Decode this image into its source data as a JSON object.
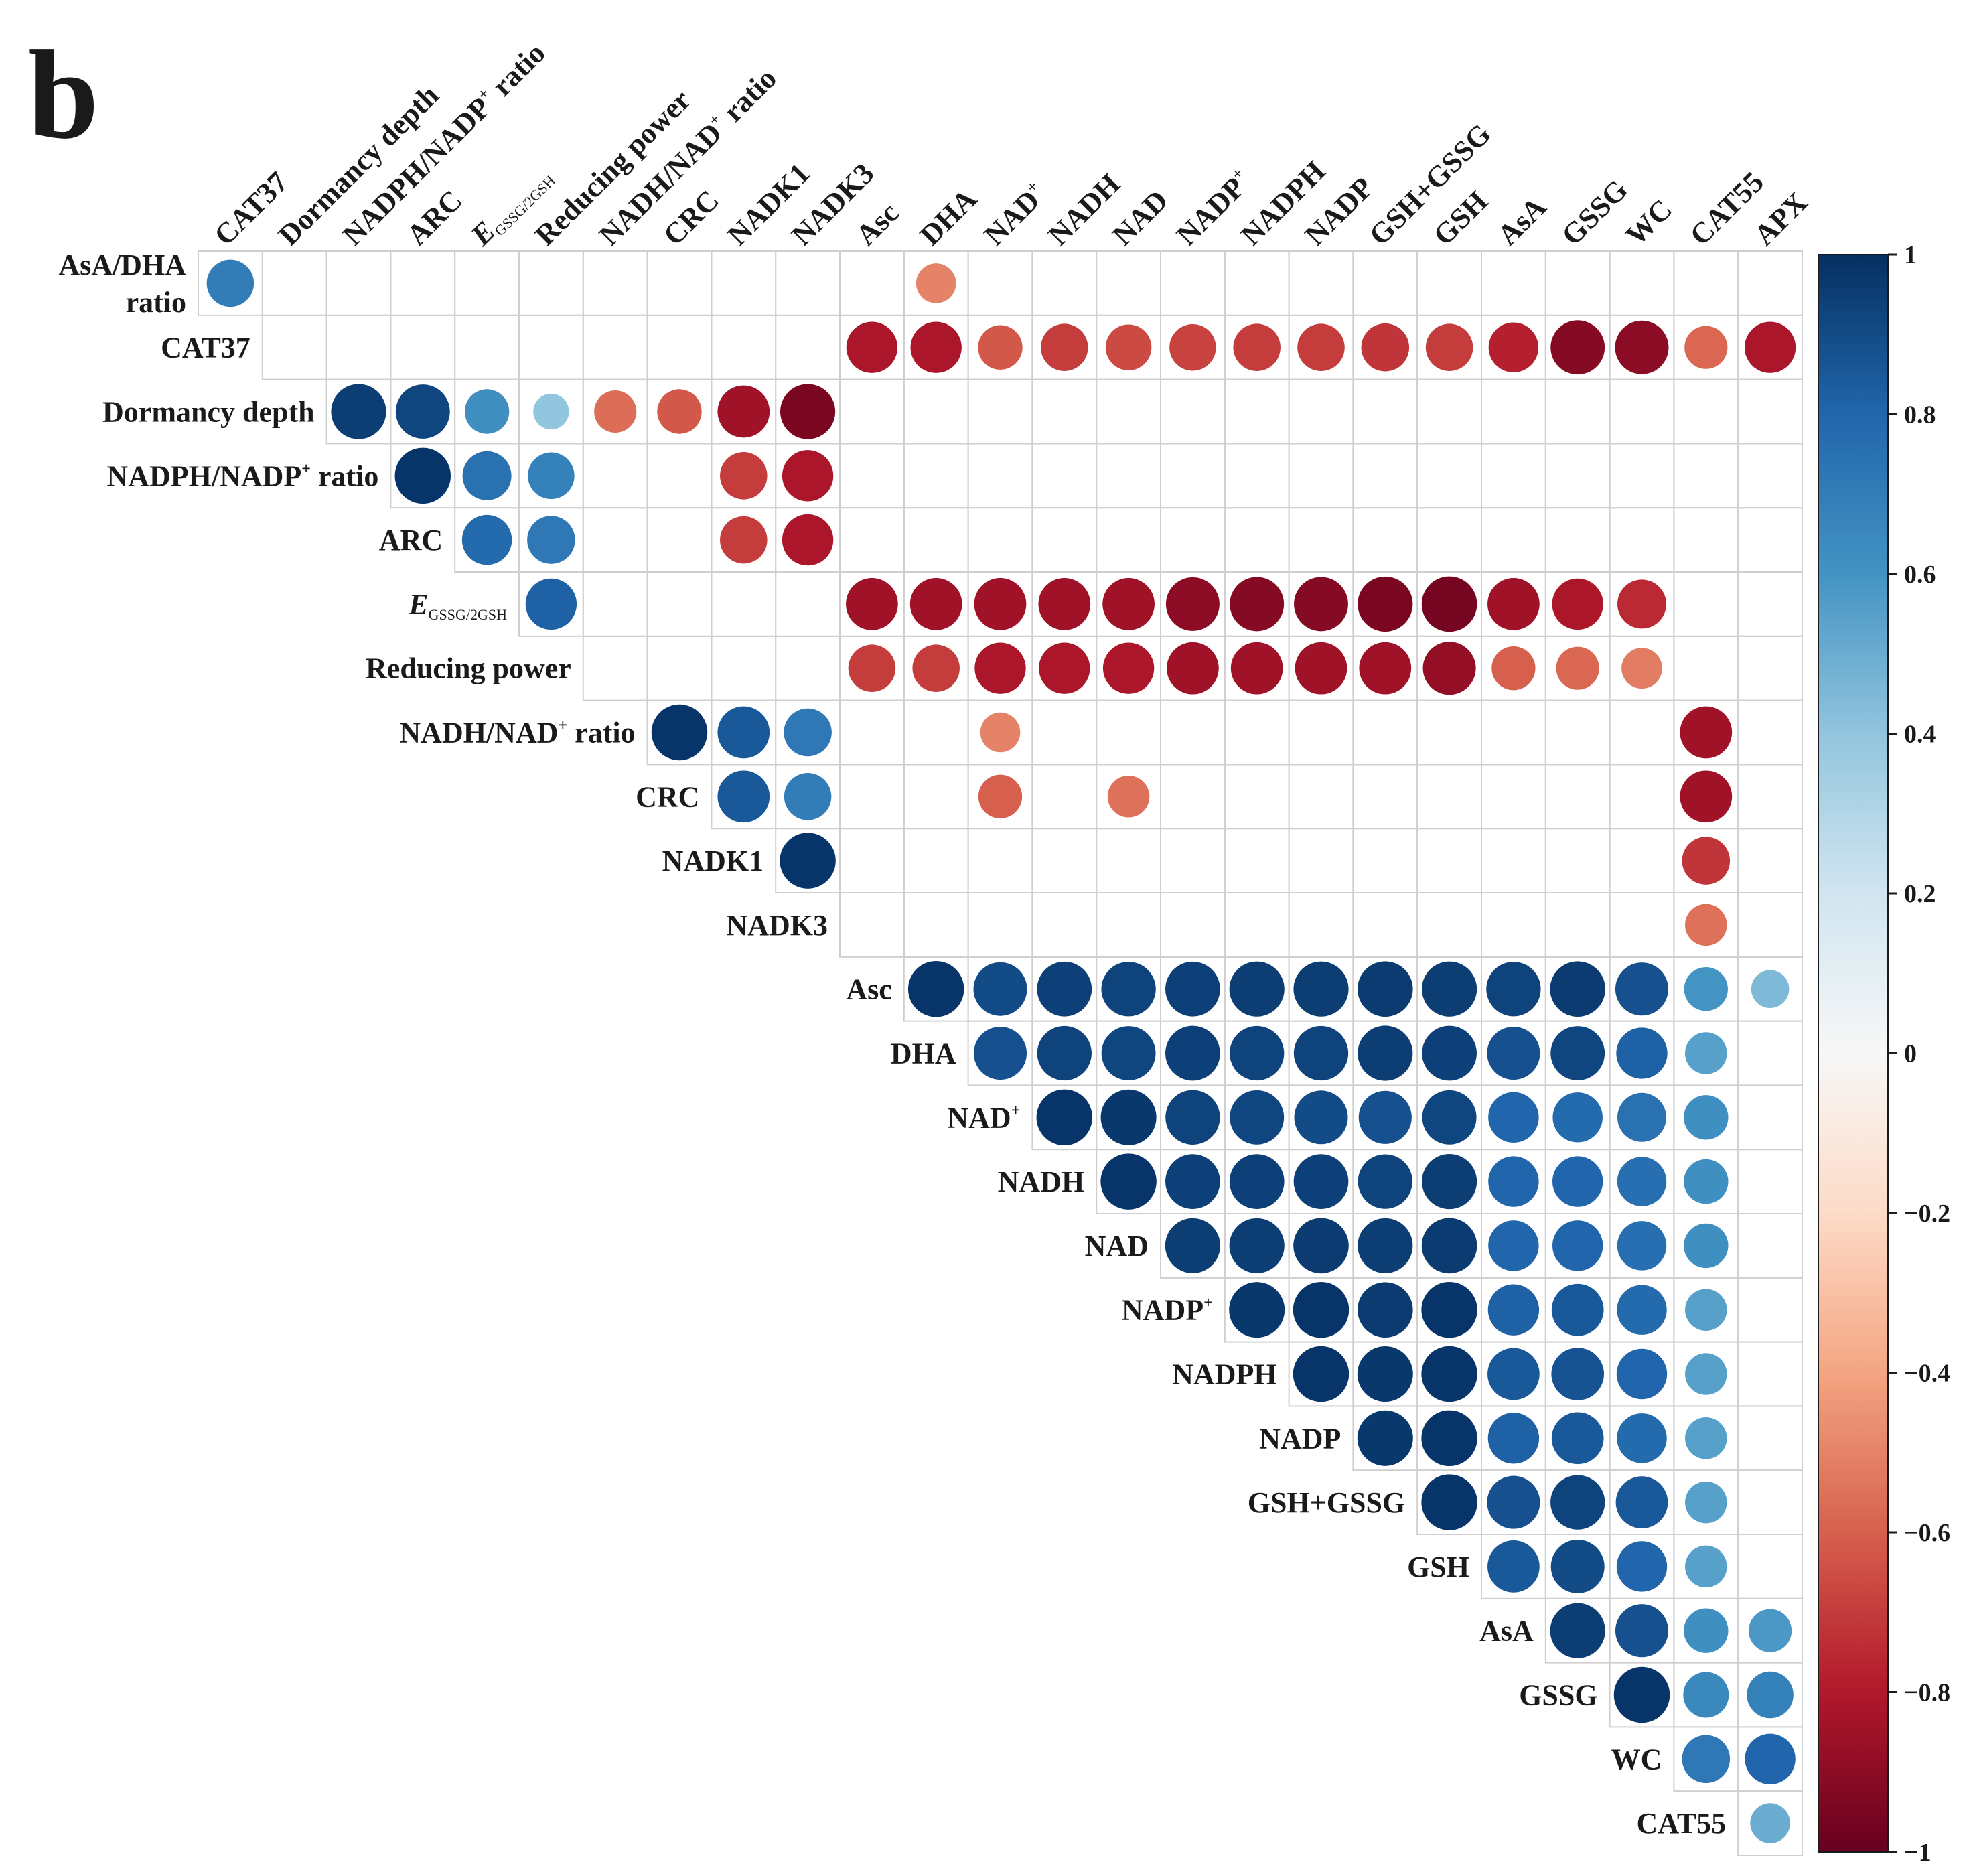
{
  "panel_label": "b",
  "chart_data": {
    "type": "heatmap",
    "subtype": "correlation-circles-upper-triangle",
    "columns": [
      "CAT37",
      "Dormancy depth",
      "NADPH/NADP⁺ ratio",
      "ARC",
      "E GSSG/2GSH",
      "Reducing power",
      "NADH/NAD⁺ ratio",
      "CRC",
      "NADK1",
      "NADK3",
      "Asc",
      "DHA",
      "NAD⁺",
      "NADH",
      "NAD",
      "NADP⁺",
      "NADPH",
      "NADP",
      "GSH+GSSG",
      "GSH",
      "AsA",
      "GSSG",
      "WC",
      "CAT55",
      "APX"
    ],
    "rows": [
      "AsA/DHA ratio",
      "CAT37",
      "Dormancy depth",
      "NADPH/NADP⁺ ratio",
      "ARC",
      "E GSSG/2GSH",
      "Reducing power",
      "NADH/NAD⁺ ratio",
      "CRC",
      "NADK1",
      "NADK3",
      "Asc",
      "DHA",
      "NAD⁺",
      "NADH",
      "NAD",
      "NADP⁺",
      "NADPH",
      "NADP",
      "GSH+GSSG",
      "GSH",
      "AsA",
      "GSSG",
      "WC",
      "CAT55"
    ],
    "labels": {
      "columns": [
        {
          "text": "CAT37"
        },
        {
          "text": "Dormancy depth"
        },
        {
          "text": "NADPH/NADP",
          "sup": "+",
          "tail": " ratio"
        },
        {
          "text": "ARC"
        },
        {
          "text": "E",
          "italic": true,
          "sub": "GSSG/2GSH"
        },
        {
          "text": "Reducing power"
        },
        {
          "text": "NADH/NAD",
          "sup": "+",
          "tail": " ratio"
        },
        {
          "text": "CRC"
        },
        {
          "text": "NADK1"
        },
        {
          "text": "NADK3"
        },
        {
          "text": "Asc"
        },
        {
          "text": "DHA"
        },
        {
          "text": "NAD",
          "sup": "+"
        },
        {
          "text": "NADH"
        },
        {
          "text": "NAD"
        },
        {
          "text": "NADP",
          "sup": "+"
        },
        {
          "text": "NADPH"
        },
        {
          "text": "NADP"
        },
        {
          "text": "GSH+GSSG"
        },
        {
          "text": "GSH"
        },
        {
          "text": "AsA"
        },
        {
          "text": "GSSG"
        },
        {
          "text": "WC"
        },
        {
          "text": "CAT55"
        },
        {
          "text": "APX"
        }
      ],
      "rows": [
        {
          "text": "AsA/DHA",
          "line2": "ratio"
        },
        {
          "text": "CAT37"
        },
        {
          "text": "Dormancy depth"
        },
        {
          "text": "NADPH/NADP",
          "sup": "+",
          "tail": " ratio"
        },
        {
          "text": "ARC"
        },
        {
          "text": "E",
          "italic": true,
          "sub": "GSSG/2GSH"
        },
        {
          "text": "Reducing power"
        },
        {
          "text": "NADH/NAD",
          "sup": "+",
          "tail": " ratio"
        },
        {
          "text": "CRC"
        },
        {
          "text": "NADK1"
        },
        {
          "text": "NADK3"
        },
        {
          "text": "Asc"
        },
        {
          "text": "DHA"
        },
        {
          "text": "NAD",
          "sup": "+"
        },
        {
          "text": "NADH"
        },
        {
          "text": "NAD"
        },
        {
          "text": "NADP",
          "sup": "+"
        },
        {
          "text": "NADPH"
        },
        {
          "text": "NADP"
        },
        {
          "text": "GSH+GSSG"
        },
        {
          "text": "GSH"
        },
        {
          "text": "AsA"
        },
        {
          "text": "GSSG"
        },
        {
          "text": "WC"
        },
        {
          "text": "CAT55"
        }
      ]
    },
    "values": [
      [
        0.7,
        null,
        null,
        null,
        null,
        null,
        null,
        null,
        null,
        null,
        null,
        -0.5,
        null,
        null,
        null,
        null,
        null,
        null,
        null,
        null,
        null,
        null,
        null,
        null,
        null
      ],
      [
        null,
        null,
        null,
        null,
        null,
        null,
        null,
        null,
        null,
        null,
        -0.82,
        -0.82,
        -0.62,
        -0.7,
        -0.66,
        -0.68,
        -0.7,
        -0.7,
        -0.72,
        -0.7,
        -0.78,
        -0.92,
        -0.9,
        -0.58,
        -0.82
      ],
      [
        null,
        null,
        0.95,
        0.92,
        0.62,
        0.4,
        -0.56,
        -0.62,
        -0.85,
        -0.95,
        null,
        null,
        null,
        null,
        null,
        null,
        null,
        null,
        null,
        null,
        null,
        null,
        null,
        null,
        null
      ],
      [
        null,
        null,
        null,
        0.98,
        0.75,
        0.68,
        null,
        null,
        -0.7,
        -0.82,
        null,
        null,
        null,
        null,
        null,
        null,
        null,
        null,
        null,
        null,
        null,
        null,
        null,
        null,
        null
      ],
      [
        null,
        null,
        null,
        null,
        0.78,
        0.72,
        null,
        null,
        -0.7,
        -0.82,
        null,
        null,
        null,
        null,
        null,
        null,
        null,
        null,
        null,
        null,
        null,
        null,
        null,
        null,
        null
      ],
      [
        null,
        null,
        null,
        null,
        null,
        0.82,
        null,
        null,
        null,
        null,
        -0.85,
        -0.85,
        -0.85,
        -0.85,
        -0.85,
        -0.9,
        -0.92,
        -0.92,
        -0.95,
        -0.96,
        -0.85,
        -0.82,
        -0.75,
        null,
        null
      ],
      [
        null,
        null,
        null,
        null,
        null,
        null,
        null,
        null,
        null,
        null,
        -0.7,
        -0.7,
        -0.82,
        -0.82,
        -0.82,
        -0.85,
        -0.85,
        -0.85,
        -0.85,
        -0.88,
        -0.6,
        -0.58,
        -0.52,
        null,
        null
      ],
      [
        null,
        null,
        null,
        null,
        null,
        null,
        null,
        0.98,
        0.85,
        0.72,
        null,
        null,
        -0.5,
        null,
        null,
        null,
        null,
        null,
        null,
        null,
        null,
        null,
        null,
        -0.85,
        null
      ],
      [
        null,
        null,
        null,
        null,
        null,
        null,
        null,
        null,
        0.85,
        0.7,
        null,
        null,
        -0.6,
        null,
        -0.55,
        null,
        null,
        null,
        null,
        null,
        null,
        null,
        null,
        -0.85,
        null
      ],
      [
        null,
        null,
        null,
        null,
        null,
        null,
        null,
        null,
        null,
        0.98,
        null,
        null,
        null,
        null,
        null,
        null,
        null,
        null,
        null,
        null,
        null,
        null,
        null,
        -0.72,
        null
      ],
      [
        null,
        null,
        null,
        null,
        null,
        null,
        null,
        null,
        null,
        null,
        null,
        null,
        null,
        null,
        null,
        null,
        null,
        null,
        null,
        null,
        null,
        null,
        null,
        -0.55,
        null
      ],
      [
        null,
        null,
        null,
        null,
        null,
        null,
        null,
        null,
        null,
        null,
        null,
        0.98,
        0.9,
        0.94,
        0.93,
        0.94,
        0.95,
        0.95,
        0.96,
        0.95,
        0.93,
        0.96,
        0.88,
        0.6,
        0.45
      ],
      [
        null,
        null,
        null,
        null,
        null,
        null,
        null,
        null,
        null,
        null,
        null,
        null,
        0.88,
        0.93,
        0.92,
        0.94,
        0.93,
        0.93,
        0.95,
        0.94,
        0.88,
        0.92,
        0.82,
        0.55,
        null
      ],
      [
        null,
        null,
        null,
        null,
        null,
        null,
        null,
        null,
        null,
        null,
        null,
        null,
        null,
        0.98,
        0.97,
        0.93,
        0.92,
        0.9,
        0.88,
        0.92,
        0.8,
        0.78,
        0.75,
        0.62,
        null
      ],
      [
        null,
        null,
        null,
        null,
        null,
        null,
        null,
        null,
        null,
        null,
        null,
        null,
        null,
        null,
        0.98,
        0.94,
        0.94,
        0.94,
        0.93,
        0.95,
        0.8,
        0.8,
        0.76,
        0.62,
        null
      ],
      [
        null,
        null,
        null,
        null,
        null,
        null,
        null,
        null,
        null,
        null,
        null,
        null,
        null,
        null,
        null,
        0.95,
        0.95,
        0.96,
        0.95,
        0.96,
        0.8,
        0.8,
        0.76,
        0.62,
        null
      ],
      [
        null,
        null,
        null,
        null,
        null,
        null,
        null,
        null,
        null,
        null,
        null,
        null,
        null,
        null,
        null,
        null,
        0.97,
        0.98,
        0.96,
        0.98,
        0.82,
        0.85,
        0.78,
        0.55,
        null
      ],
      [
        null,
        null,
        null,
        null,
        null,
        null,
        null,
        null,
        null,
        null,
        null,
        null,
        null,
        null,
        null,
        null,
        null,
        0.98,
        0.97,
        0.98,
        0.85,
        0.87,
        0.8,
        0.55,
        null
      ],
      [
        null,
        null,
        null,
        null,
        null,
        null,
        null,
        null,
        null,
        null,
        null,
        null,
        null,
        null,
        null,
        null,
        null,
        null,
        0.97,
        0.98,
        0.82,
        0.85,
        0.78,
        0.55,
        null
      ],
      [
        null,
        null,
        null,
        null,
        null,
        null,
        null,
        null,
        null,
        null,
        null,
        null,
        null,
        null,
        null,
        null,
        null,
        null,
        null,
        0.98,
        0.88,
        0.93,
        0.85,
        0.55,
        null
      ],
      [
        null,
        null,
        null,
        null,
        null,
        null,
        null,
        null,
        null,
        null,
        null,
        null,
        null,
        null,
        null,
        null,
        null,
        null,
        null,
        null,
        0.85,
        0.9,
        0.8,
        0.55,
        null
      ],
      [
        null,
        null,
        null,
        null,
        null,
        null,
        null,
        null,
        null,
        null,
        null,
        null,
        null,
        null,
        null,
        null,
        null,
        null,
        null,
        null,
        null,
        0.95,
        0.88,
        0.62,
        0.58
      ],
      [
        null,
        null,
        null,
        null,
        null,
        null,
        null,
        null,
        null,
        null,
        null,
        null,
        null,
        null,
        null,
        null,
        null,
        null,
        null,
        null,
        null,
        null,
        0.98,
        0.65,
        0.68
      ],
      [
        null,
        null,
        null,
        null,
        null,
        null,
        null,
        null,
        null,
        null,
        null,
        null,
        null,
        null,
        null,
        null,
        null,
        null,
        null,
        null,
        null,
        null,
        null,
        0.72,
        0.8
      ],
      [
        null,
        null,
        null,
        null,
        null,
        null,
        null,
        null,
        null,
        null,
        null,
        null,
        null,
        null,
        null,
        null,
        null,
        null,
        null,
        null,
        null,
        null,
        null,
        null,
        0.5
      ]
    ],
    "colorbar": {
      "min": -1,
      "max": 1,
      "ticks": [
        1,
        0.8,
        0.6,
        0.4,
        0.2,
        0,
        -0.2,
        -0.4,
        -0.6,
        -0.8,
        -1
      ],
      "tick_labels": [
        "1",
        "0.8",
        "0.6",
        "0.4",
        "0.2",
        "0",
        "−0.2",
        "−0.4",
        "−0.6",
        "−0.8",
        "−1"
      ],
      "colors": [
        {
          "value": -1,
          "color": "#67001f"
        },
        {
          "value": -0.8,
          "color": "#b2182b"
        },
        {
          "value": -0.6,
          "color": "#d6604d"
        },
        {
          "value": -0.4,
          "color": "#f4a582"
        },
        {
          "value": -0.2,
          "color": "#fddbc7"
        },
        {
          "value": 0,
          "color": "#f7f7f7"
        },
        {
          "value": 0.2,
          "color": "#d1e5f0"
        },
        {
          "value": 0.4,
          "color": "#92c5de"
        },
        {
          "value": 0.6,
          "color": "#4393c3"
        },
        {
          "value": 0.8,
          "color": "#2166ac"
        },
        {
          "value": 1,
          "color": "#053061"
        }
      ]
    }
  }
}
